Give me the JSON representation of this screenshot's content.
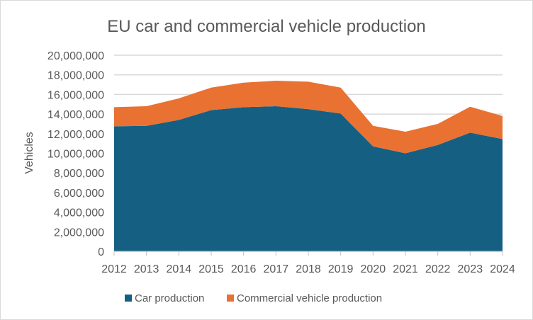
{
  "chart_data": {
    "type": "area",
    "stacked": true,
    "title": "EU car and commercial vehicle production",
    "xlabel": "",
    "ylabel": "Vehicles",
    "ylim": [
      0,
      20000000
    ],
    "yticks": [
      0,
      2000000,
      4000000,
      6000000,
      8000000,
      10000000,
      12000000,
      14000000,
      16000000,
      18000000,
      20000000
    ],
    "ytick_labels": [
      "0",
      "2,000,000",
      "4,000,000",
      "6,000,000",
      "8,000,000",
      "10,000,000",
      "12,000,000",
      "14,000,000",
      "16,000,000",
      "18,000,000",
      "20,000,000"
    ],
    "categories": [
      "2012",
      "2013",
      "2014",
      "2015",
      "2016",
      "2017",
      "2018",
      "2019",
      "2020",
      "2021",
      "2022",
      "2023",
      "2024"
    ],
    "grid": true,
    "legend_position": "bottom",
    "series": [
      {
        "name": "Car production",
        "color": "#156082",
        "values": [
          12750000,
          12800000,
          13400000,
          14400000,
          14700000,
          14800000,
          14500000,
          14050000,
          10700000,
          10000000,
          10850000,
          12100000,
          11450000
        ]
      },
      {
        "name": "Commercial vehicle production",
        "color": "#E97132",
        "values": [
          1950000,
          2000000,
          2200000,
          2300000,
          2500000,
          2600000,
          2800000,
          2650000,
          2100000,
          2200000,
          2150000,
          2650000,
          2350000
        ]
      }
    ]
  }
}
